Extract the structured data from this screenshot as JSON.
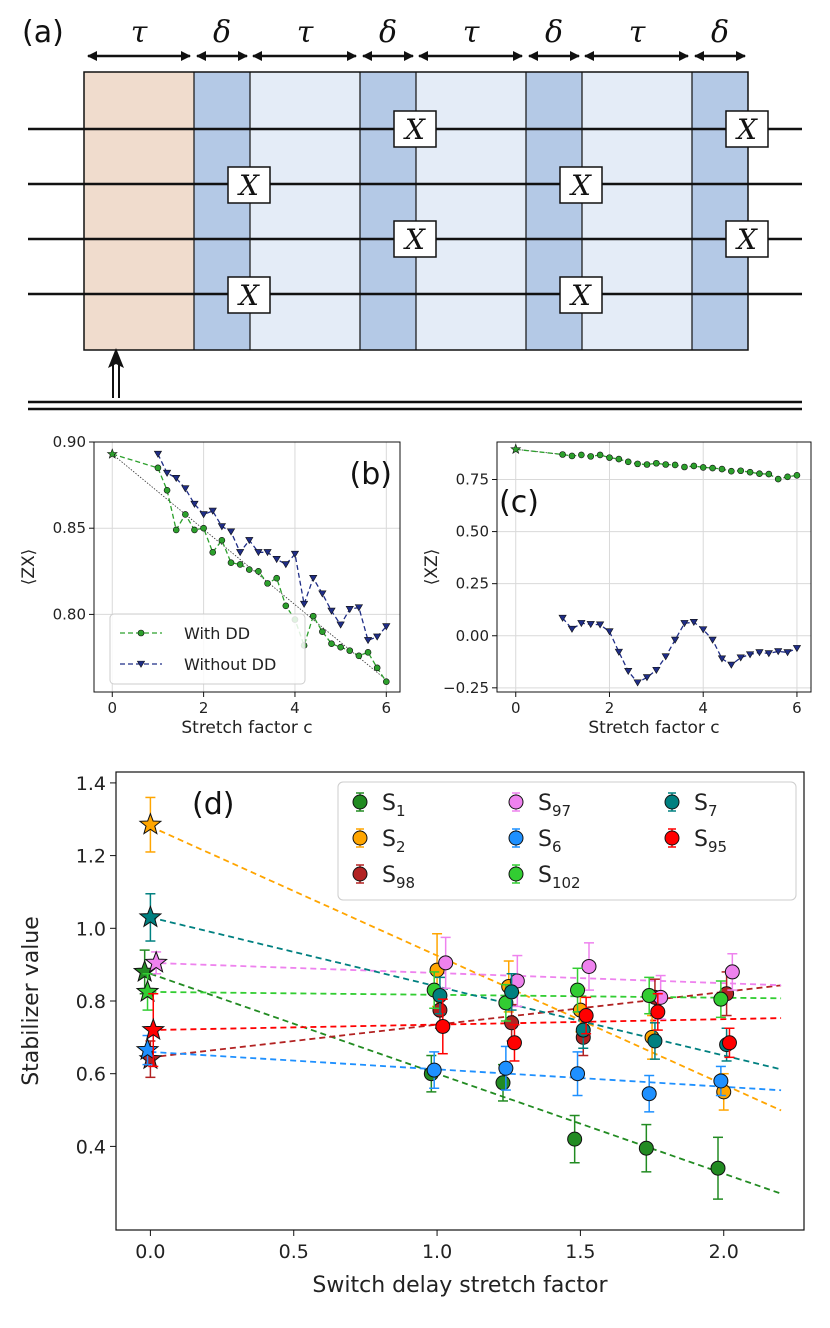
{
  "panel_a": {
    "label": "(a)",
    "segment_labels": [
      "τ",
      "δ",
      "τ",
      "δ",
      "τ",
      "δ",
      "τ",
      "δ"
    ],
    "gate_label": "X",
    "colors": {
      "init": "#f0dccd",
      "pulse": "#b4c9e6",
      "idle": "#e4ecf7"
    }
  },
  "chart_data": [
    {
      "id": "b",
      "type": "line",
      "panel_label": "(b)",
      "xlabel": "Stretch factor c",
      "ylabel": "⟨ZX⟩",
      "xlim": [
        -0.4,
        6.3
      ],
      "ylim": [
        0.755,
        0.9
      ],
      "xticks": [
        0,
        2,
        4,
        6
      ],
      "yticks": [
        0.8,
        0.85,
        0.9
      ],
      "ytick_labels": [
        "0.80",
        "0.85",
        "0.90"
      ],
      "legend": [
        "With DD",
        "Without DD"
      ],
      "reference": {
        "x": [
          0,
          6
        ],
        "y": [
          0.893,
          0.762
        ]
      },
      "series": [
        {
          "name": "With DD",
          "color": "#2ca02c",
          "marker": "circle",
          "x": [
            0,
            1.0,
            1.2,
            1.4,
            1.6,
            1.8,
            2.0,
            2.2,
            2.4,
            2.6,
            2.8,
            3.0,
            3.2,
            3.4,
            3.6,
            3.8,
            4.0,
            4.2,
            4.4,
            4.6,
            4.8,
            5.0,
            5.2,
            5.4,
            5.6,
            5.8,
            6.0
          ],
          "y": [
            0.893,
            0.885,
            0.872,
            0.849,
            0.858,
            0.849,
            0.85,
            0.836,
            0.843,
            0.83,
            0.829,
            0.826,
            0.825,
            0.818,
            0.821,
            0.805,
            0.797,
            0.782,
            0.799,
            0.79,
            0.783,
            0.781,
            0.779,
            0.776,
            0.778,
            0.769,
            0.761
          ]
        },
        {
          "name": "Without DD",
          "color": "#1f2d86",
          "marker": "triangle",
          "x": [
            1.0,
            1.2,
            1.4,
            1.6,
            1.8,
            2.0,
            2.2,
            2.4,
            2.6,
            2.8,
            3.0,
            3.2,
            3.4,
            3.6,
            3.8,
            4.0,
            4.2,
            4.4,
            4.6,
            4.8,
            5.0,
            5.2,
            5.4,
            5.6,
            5.8,
            6.0
          ],
          "y": [
            0.893,
            0.882,
            0.879,
            0.873,
            0.864,
            0.858,
            0.86,
            0.851,
            0.848,
            0.836,
            0.843,
            0.836,
            0.836,
            0.832,
            0.829,
            0.835,
            0.806,
            0.821,
            0.812,
            0.802,
            0.794,
            0.803,
            0.804,
            0.785,
            0.787,
            0.793
          ]
        }
      ]
    },
    {
      "id": "c",
      "type": "line",
      "panel_label": "(c)",
      "xlabel": "Stretch factor c",
      "ylabel": "⟨XZ⟩",
      "xlim": [
        -0.4,
        6.3
      ],
      "ylim": [
        -0.27,
        0.93
      ],
      "xticks": [
        0,
        2,
        4,
        6
      ],
      "yticks": [
        -0.25,
        0.0,
        0.25,
        0.5,
        0.75
      ],
      "ytick_labels": [
        "−0.25",
        "0.00",
        "0.25",
        "0.50",
        "0.75"
      ],
      "reference": {
        "x": [
          0,
          1.0
        ],
        "y": [
          0.895,
          0.87
        ]
      },
      "series": [
        {
          "name": "With DD",
          "color": "#2ca02c",
          "marker": "circle",
          "x": [
            0,
            1.0,
            1.2,
            1.4,
            1.6,
            1.8,
            2.0,
            2.2,
            2.4,
            2.6,
            2.8,
            3.0,
            3.2,
            3.4,
            3.6,
            3.8,
            4.0,
            4.2,
            4.4,
            4.6,
            4.8,
            5.0,
            5.2,
            5.4,
            5.6,
            5.8,
            6.0
          ],
          "y": [
            0.895,
            0.87,
            0.863,
            0.868,
            0.861,
            0.868,
            0.855,
            0.848,
            0.835,
            0.825,
            0.822,
            0.828,
            0.822,
            0.82,
            0.81,
            0.815,
            0.808,
            0.805,
            0.8,
            0.79,
            0.792,
            0.785,
            0.778,
            0.776,
            0.752,
            0.763,
            0.77
          ]
        },
        {
          "name": "Without DD",
          "color": "#1f2d86",
          "marker": "triangle",
          "x": [
            1.0,
            1.2,
            1.4,
            1.6,
            1.8,
            2.0,
            2.2,
            2.4,
            2.6,
            2.8,
            3.0,
            3.2,
            3.4,
            3.6,
            3.8,
            4.0,
            4.2,
            4.4,
            4.6,
            4.8,
            5.0,
            5.2,
            5.4,
            5.6,
            5.8,
            6.0
          ],
          "y": [
            0.085,
            0.032,
            0.06,
            0.055,
            0.053,
            0.02,
            -0.078,
            -0.17,
            -0.225,
            -0.2,
            -0.165,
            -0.1,
            -0.02,
            0.06,
            0.065,
            0.03,
            -0.02,
            -0.11,
            -0.14,
            -0.105,
            -0.09,
            -0.08,
            -0.085,
            -0.075,
            -0.08,
            -0.06
          ]
        }
      ]
    },
    {
      "id": "d",
      "type": "scatter",
      "panel_label": "(d)",
      "xlabel": "Switch delay stretch factor",
      "ylabel": "Stabilizer value",
      "xlim": [
        -0.12,
        2.28
      ],
      "ylim": [
        0.17,
        1.43
      ],
      "xticks": [
        0.0,
        0.5,
        1.0,
        1.5,
        2.0
      ],
      "xtick_labels": [
        "0.0",
        "0.5",
        "1.0",
        "1.5",
        "2.0"
      ],
      "yticks": [
        0.4,
        0.6,
        0.8,
        1.0,
        1.2,
        1.4
      ],
      "ytick_labels": [
        "0.4",
        "0.6",
        "0.8",
        "1.0",
        "1.2",
        "1.4"
      ],
      "fit_range": [
        0,
        2.2
      ],
      "series": [
        {
          "name": "S",
          "sub": "1",
          "color": "#228b22",
          "fit": [
            0.875,
            -0.275
          ],
          "x0": -0.02,
          "y0": 0.88,
          "e0": 0.06,
          "x": [
            0.98,
            1.23,
            1.48,
            1.73,
            1.98
          ],
          "y": [
            0.6,
            0.575,
            0.42,
            0.395,
            0.34
          ],
          "err": [
            0.05,
            0.05,
            0.065,
            0.065,
            0.085
          ]
        },
        {
          "name": "S",
          "sub": "2",
          "color": "#ffa500",
          "fit": [
            1.28,
            -0.355
          ],
          "x0": 0.0,
          "y0": 1.285,
          "e0": 0.075,
          "x": [
            1.0,
            1.25,
            1.5,
            1.75,
            2.0
          ],
          "y": [
            0.885,
            0.84,
            0.775,
            0.7,
            0.55
          ],
          "err": [
            0.1,
            0.07,
            0.06,
            0.06,
            0.05
          ]
        },
        {
          "name": "S",
          "sub": "98",
          "color": "#b22222",
          "fit": [
            0.645,
            0.09
          ],
          "x0": 0.0,
          "y0": 0.64,
          "e0": 0.05,
          "x": [
            1.01,
            1.26,
            1.51,
            1.76,
            2.01
          ],
          "y": [
            0.775,
            0.74,
            0.7,
            0.81,
            0.82
          ],
          "err": [
            0.05,
            0.05,
            0.05,
            0.05,
            0.06
          ]
        },
        {
          "name": "S",
          "sub": "97",
          "color": "#ee82ee",
          "fit": [
            0.905,
            -0.028
          ],
          "x0": 0.02,
          "y0": 0.905,
          "e0": 0.03,
          "x": [
            1.03,
            1.28,
            1.53,
            1.78,
            2.03
          ],
          "y": [
            0.905,
            0.855,
            0.895,
            0.81,
            0.88
          ],
          "err": [
            0.07,
            0.07,
            0.065,
            0.06,
            0.05
          ]
        },
        {
          "name": "S",
          "sub": "6",
          "color": "#1e90ff",
          "fit": [
            0.66,
            -0.048
          ],
          "x0": -0.01,
          "y0": 0.665,
          "e0": 0.04,
          "x": [
            0.99,
            1.24,
            1.49,
            1.74,
            1.99
          ],
          "y": [
            0.61,
            0.615,
            0.6,
            0.545,
            0.58
          ],
          "err": [
            0.05,
            0.06,
            0.06,
            0.05,
            0.04
          ]
        },
        {
          "name": "S",
          "sub": "102",
          "color": "#32cd32",
          "fit": [
            0.825,
            -0.008
          ],
          "x0": -0.01,
          "y0": 0.825,
          "e0": 0.05,
          "x": [
            0.99,
            1.24,
            1.49,
            1.74,
            1.99
          ],
          "y": [
            0.83,
            0.795,
            0.83,
            0.815,
            0.805
          ],
          "err": [
            0.05,
            0.05,
            0.06,
            0.05,
            0.05
          ]
        },
        {
          "name": "S",
          "sub": "7",
          "color": "#008080",
          "fit": [
            1.03,
            -0.19
          ],
          "x0": 0.0,
          "y0": 1.03,
          "e0": 0.065,
          "x": [
            1.01,
            1.26,
            1.51,
            1.76,
            2.01
          ],
          "y": [
            0.815,
            0.825,
            0.72,
            0.69,
            0.68
          ],
          "err": [
            0.05,
            0.05,
            0.05,
            0.05,
            0.045
          ]
        },
        {
          "name": "S",
          "sub": "95",
          "color": "#ff0000",
          "fit": [
            0.72,
            0.015
          ],
          "x0": 0.01,
          "y0": 0.72,
          "e0": 0.1,
          "x": [
            1.02,
            1.27,
            1.52,
            1.77,
            2.02
          ],
          "y": [
            0.73,
            0.685,
            0.76,
            0.77,
            0.685
          ],
          "err": [
            0.075,
            0.05,
            0.05,
            0.05,
            0.04
          ]
        }
      ]
    }
  ]
}
